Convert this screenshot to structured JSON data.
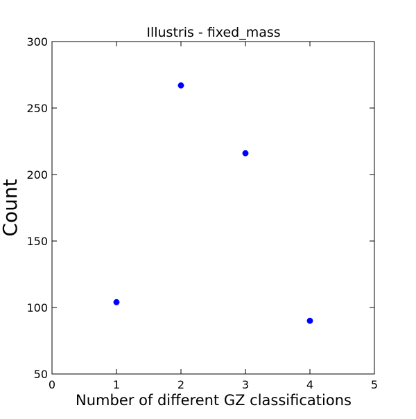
{
  "chart_data": {
    "type": "scatter",
    "title": "Illustris - fixed_mass",
    "xlabel": "Number of different GZ classifications",
    "ylabel": "Count",
    "xlim": [
      0,
      5
    ],
    "ylim": [
      50,
      300
    ],
    "xticks": [
      0,
      1,
      2,
      3,
      4,
      5
    ],
    "yticks": [
      50,
      100,
      150,
      200,
      250,
      300
    ],
    "grid": false,
    "series": [
      {
        "color": "#0000ff",
        "x": [
          1,
          2,
          3,
          4
        ],
        "y": [
          104,
          267,
          216,
          90
        ]
      }
    ]
  }
}
